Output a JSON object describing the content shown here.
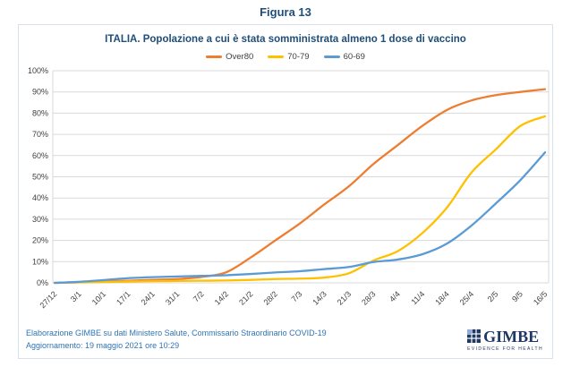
{
  "figure_title": "Figura 13",
  "chart_data": {
    "type": "line",
    "title": "ITALIA. Popolazione a cui è stata somministrata almeno 1 dose di vaccino",
    "categories": [
      "27/12",
      "3/1",
      "10/1",
      "17/1",
      "24/1",
      "31/1",
      "7/2",
      "14/2",
      "21/2",
      "28/2",
      "7/3",
      "14/3",
      "21/3",
      "28/3",
      "4/4",
      "11/4",
      "18/4",
      "25/4",
      "2/5",
      "9/5",
      "16/5"
    ],
    "series": [
      {
        "name": "Over80",
        "color": "#ED7D31",
        "values": [
          0,
          0.3,
          0.6,
          1.0,
          1.4,
          1.8,
          2.8,
          5,
          12,
          20,
          28,
          37,
          45.5,
          56,
          65,
          74,
          81.5,
          86,
          88.5,
          90,
          91.3
        ]
      },
      {
        "name": "70-79",
        "color": "#FFC000",
        "values": [
          0,
          0.2,
          0.4,
          0.6,
          0.8,
          0.9,
          1.0,
          1.1,
          1.4,
          1.8,
          2.0,
          2.5,
          4.5,
          10.5,
          15,
          23.5,
          35.5,
          52,
          63,
          74,
          78.5
        ]
      },
      {
        "name": "60-69",
        "color": "#5B9BD5",
        "values": [
          0,
          0.5,
          1.3,
          2.2,
          2.7,
          3.0,
          3.3,
          3.6,
          4.2,
          4.9,
          5.5,
          6.5,
          7.5,
          9.8,
          11,
          13.5,
          18.5,
          27,
          37.5,
          48.5,
          61.5
        ]
      }
    ],
    "ylim": [
      0,
      100
    ],
    "y_ticks": [
      "0%",
      "10%",
      "20%",
      "30%",
      "40%",
      "50%",
      "60%",
      "70%",
      "80%",
      "90%",
      "100%"
    ],
    "grid": true,
    "legend_position": "top"
  },
  "footer": {
    "line1": "Elaborazione GIMBE su dati Ministero Salute, Commissario Straordinario COVID-19",
    "line2": "Aggiornamento: 19 maggio 2021 ore 10:29",
    "logo_text": "GIMBE",
    "logo_tagline": "EVIDENCE FOR HEALTH"
  },
  "colors": {
    "title_blue": "#1F4E79",
    "footer_blue": "#2E74B5",
    "axis_text": "#404040",
    "gridline": "#D9D9D9",
    "plot_border": "#D9D9D9",
    "logo_navy": "#1F3864"
  }
}
